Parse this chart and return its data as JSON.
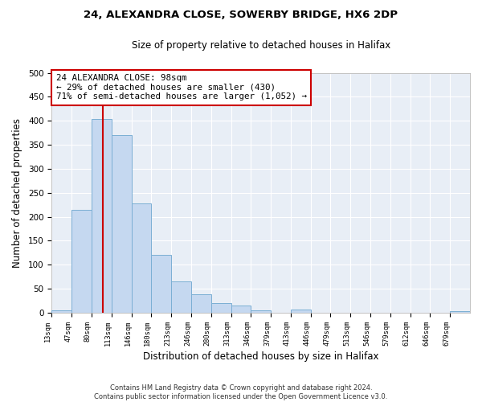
{
  "title": "24, ALEXANDRA CLOSE, SOWERBY BRIDGE, HX6 2DP",
  "subtitle": "Size of property relative to detached houses in Halifax",
  "xlabel": "Distribution of detached houses by size in Halifax",
  "ylabel": "Number of detached properties",
  "bin_labels": [
    "13sqm",
    "47sqm",
    "80sqm",
    "113sqm",
    "146sqm",
    "180sqm",
    "213sqm",
    "246sqm",
    "280sqm",
    "313sqm",
    "346sqm",
    "379sqm",
    "413sqm",
    "446sqm",
    "479sqm",
    "513sqm",
    "546sqm",
    "579sqm",
    "612sqm",
    "646sqm",
    "679sqm"
  ],
  "bar_heights": [
    5,
    215,
    403,
    370,
    228,
    120,
    65,
    39,
    20,
    14,
    5,
    0,
    7,
    0,
    0,
    0,
    0,
    0,
    0,
    0,
    3
  ],
  "bar_color": "#c5d8f0",
  "bar_edge_color": "#7bafd4",
  "bg_color": "#e8eef6",
  "grid_color": "#ffffff",
  "vline_color": "#cc0000",
  "vline_bin_index": 2.5,
  "annotation_text": "24 ALEXANDRA CLOSE: 98sqm\n← 29% of detached houses are smaller (430)\n71% of semi-detached houses are larger (1,052) →",
  "annotation_box_edge_color": "#cc0000",
  "ylim": [
    0,
    500
  ],
  "yticks": [
    0,
    50,
    100,
    150,
    200,
    250,
    300,
    350,
    400,
    450,
    500
  ],
  "footnote_line1": "Contains HM Land Registry data © Crown copyright and database right 2024.",
  "footnote_line2": "Contains public sector information licensed under the Open Government Licence v3.0."
}
